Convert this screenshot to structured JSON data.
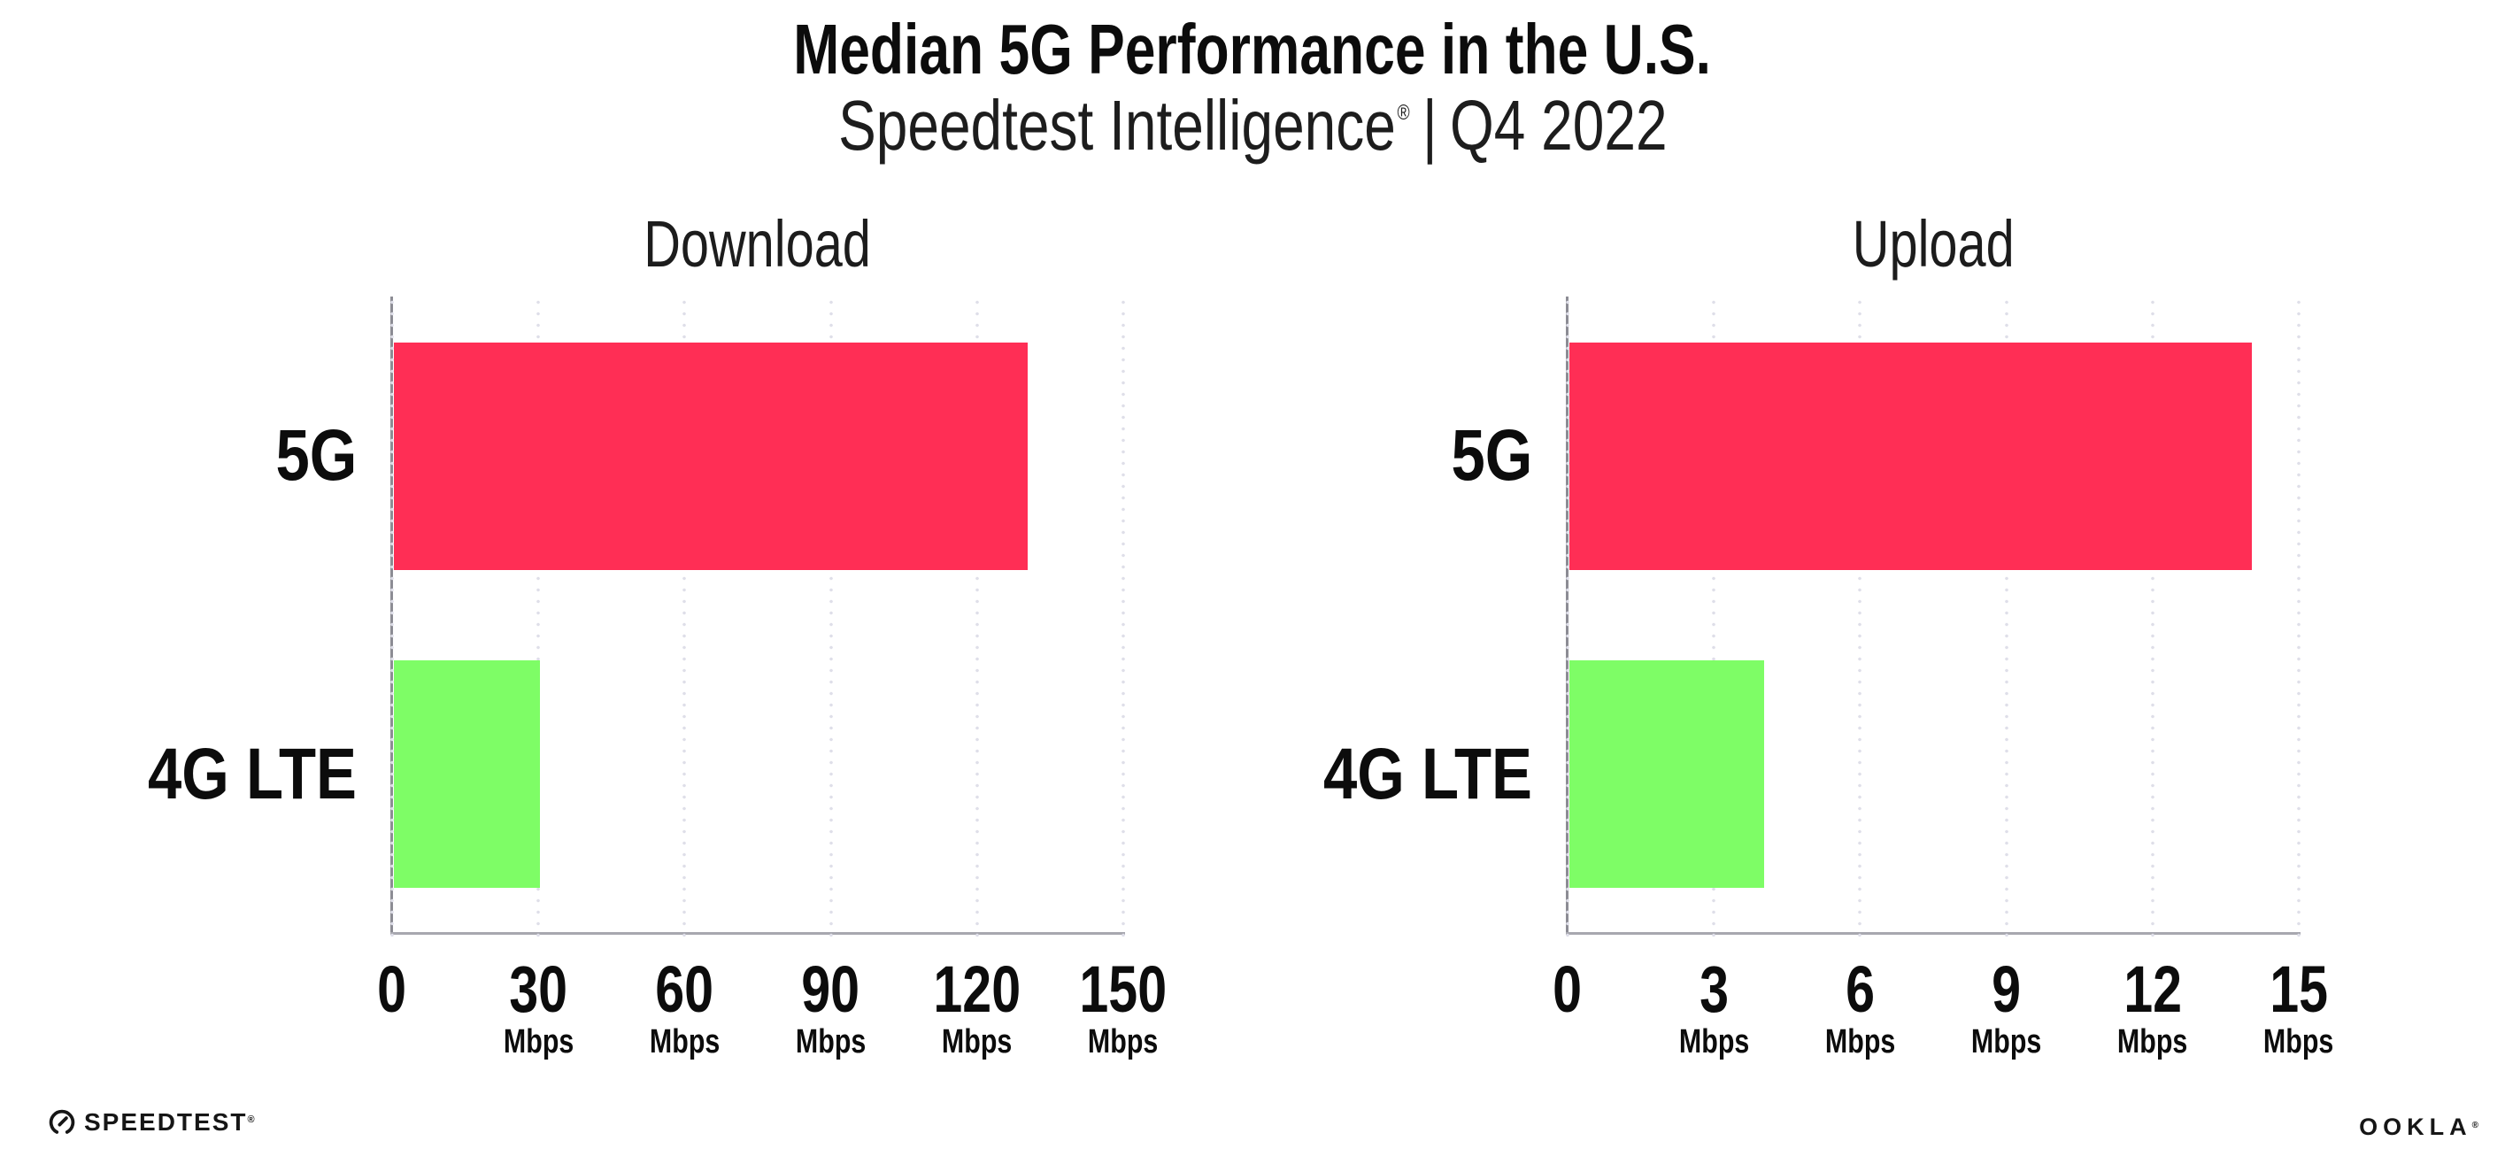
{
  "header": {
    "title": "Median 5G Performance in the U.S.",
    "subtitle": {
      "brand": "Speedtest Intelligence",
      "registered": "®",
      "separator": "|",
      "period": "Q4 2022"
    }
  },
  "charts": [
    {
      "title": "Download",
      "unit": "Mbps",
      "axis_max": 150,
      "ticks": [
        "0",
        "30",
        "60",
        "90",
        "120",
        "150"
      ],
      "bars": [
        {
          "label": "5G",
          "value": 130,
          "color": "#FF2E55"
        },
        {
          "label": "4G LTE",
          "value": 30,
          "color": "#7EFD66"
        }
      ]
    },
    {
      "title": "Upload",
      "unit": "Mbps",
      "axis_max": 15,
      "ticks": [
        "0",
        "3",
        "6",
        "9",
        "12",
        "15"
      ],
      "bars": [
        {
          "label": "5G",
          "value": 14,
          "color": "#FF2E55"
        },
        {
          "label": "4G LTE",
          "value": 4,
          "color": "#7EFD66"
        }
      ]
    }
  ],
  "footer": {
    "speedtest_label": "SPEEDTEST",
    "speedtest_mark": "®",
    "ookla_label": "OOKLA",
    "ookla_mark": "®"
  },
  "colors": {
    "bar_5g": "#FF2E55",
    "bar_4g_lte": "#7EFD66",
    "gridline": "#DFDFE9",
    "x_axis": "#A7A7AF",
    "y_axis": "#8C8C94",
    "text": "#0F0F0F"
  },
  "chart_data": [
    {
      "type": "bar",
      "orientation": "horizontal",
      "title": "Download",
      "categories": [
        "5G",
        "4G LTE"
      ],
      "values": [
        130,
        30
      ],
      "unit": "Mbps",
      "xlim": [
        0,
        150
      ],
      "xticks": [
        0,
        30,
        60,
        90,
        120,
        150
      ],
      "bar_colors": [
        "#FF2E55",
        "#7EFD66"
      ],
      "grid": "vertical-dotted",
      "legend": "none"
    },
    {
      "type": "bar",
      "orientation": "horizontal",
      "title": "Upload",
      "categories": [
        "5G",
        "4G LTE"
      ],
      "values": [
        14,
        4
      ],
      "unit": "Mbps",
      "xlim": [
        0,
        15
      ],
      "xticks": [
        0,
        3,
        6,
        9,
        12,
        15
      ],
      "bar_colors": [
        "#FF2E55",
        "#7EFD66"
      ],
      "grid": "vertical-dotted",
      "legend": "none"
    }
  ]
}
